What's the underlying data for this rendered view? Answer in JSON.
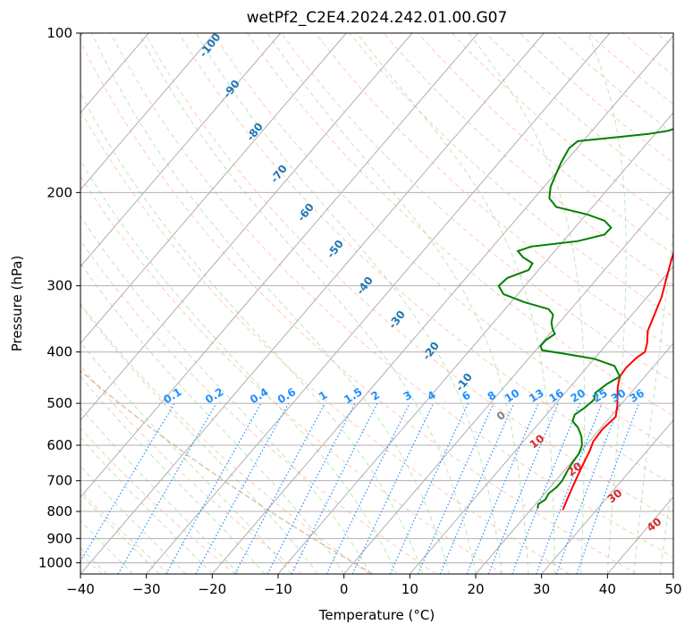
{
  "chart_data": {
    "type": "line",
    "title": "wetPf2_C2E4.2024.242.01.00.G07",
    "xlabel": "Temperature (°C)",
    "ylabel": "Pressure (hPa)",
    "xlim": [
      -40,
      50
    ],
    "ylim": [
      1050,
      100
    ],
    "y_scale": "log",
    "grid": true,
    "x_ticks": [
      "−40",
      "−30",
      "−20",
      "−10",
      "0",
      "10",
      "20",
      "30",
      "40",
      "50"
    ],
    "y_ticks": [
      "100",
      "200",
      "300",
      "400",
      "500",
      "600",
      "700",
      "800",
      "900",
      "1000"
    ],
    "colors": {
      "temperature": "#ff0000",
      "dewpoint": "#008000",
      "isotherm": "#b0b0b0",
      "dry_adiabat": "#ff7f50",
      "moist_adiabat": "#3cb371",
      "mixing_ratio": "#1e90ff",
      "lcl_curve": "#c8a080"
    },
    "series": [
      {
        "key": "temperature",
        "points": [
          [
            24.9,
            795
          ],
          [
            24.2,
            760
          ],
          [
            23.6,
            730
          ],
          [
            23.0,
            700
          ],
          [
            22.4,
            670
          ],
          [
            21.8,
            640
          ],
          [
            21.3,
            615
          ],
          [
            20.6,
            590
          ],
          [
            20.4,
            560
          ],
          [
            20.8,
            530
          ],
          [
            19.6,
            505
          ],
          [
            18.4,
            485
          ],
          [
            17.2,
            465
          ],
          [
            16.2,
            445
          ],
          [
            16.0,
            428
          ],
          [
            16.3,
            410
          ],
          [
            16.8,
            400
          ],
          [
            16.0,
            385
          ],
          [
            14.5,
            365
          ],
          [
            13.4,
            340
          ],
          [
            12.2,
            315
          ],
          [
            10.6,
            292
          ],
          [
            9.0,
            270
          ],
          [
            7.5,
            250
          ],
          [
            5.9,
            232
          ],
          [
            4.5,
            216
          ],
          [
            3.1,
            202
          ],
          [
            1.8,
            188
          ],
          [
            0.9,
            178
          ],
          [
            -0.8,
            166
          ],
          [
            -2.8,
            154
          ],
          [
            -4.8,
            143
          ],
          [
            -6.6,
            133
          ],
          [
            -8.4,
            124
          ],
          [
            -9.6,
            117
          ],
          [
            -10.6,
            112
          ],
          [
            -11.3,
            108
          ],
          [
            -11.4,
            105
          ],
          [
            -11.4,
            100
          ]
        ]
      },
      {
        "key": "dewpoint",
        "points": [
          [
            20.9,
            790
          ],
          [
            20.4,
            775
          ],
          [
            20.9,
            760
          ],
          [
            20.6,
            740
          ],
          [
            21.0,
            720
          ],
          [
            21.0,
            700
          ],
          [
            20.5,
            670
          ],
          [
            20.2,
            645
          ],
          [
            20.0,
            622
          ],
          [
            19.4,
            600
          ],
          [
            18.2,
            578
          ],
          [
            16.6,
            557
          ],
          [
            14.8,
            540
          ],
          [
            14.3,
            525
          ],
          [
            14.9,
            510
          ],
          [
            15.3,
            492
          ],
          [
            14.6,
            478
          ],
          [
            15.2,
            460
          ],
          [
            16.2,
            445
          ],
          [
            14.0,
            425
          ],
          [
            10.0,
            412
          ],
          [
            4.2,
            402
          ],
          [
            1.0,
            397
          ],
          [
            0.2,
            390
          ],
          [
            0.2,
            380
          ],
          [
            0.8,
            370
          ],
          [
            -0.2,
            362
          ],
          [
            -1.2,
            352
          ],
          [
            -2.0,
            340
          ],
          [
            -3.4,
            332
          ],
          [
            -8.0,
            322
          ],
          [
            -12.2,
            311
          ],
          [
            -14.0,
            300
          ],
          [
            -13.7,
            290
          ],
          [
            -11.5,
            280
          ],
          [
            -11.8,
            272
          ],
          [
            -14.0,
            265
          ],
          [
            -15.6,
            258
          ],
          [
            -14.2,
            253
          ],
          [
            -7.8,
            247
          ],
          [
            -4.6,
            240
          ],
          [
            -4.5,
            233
          ],
          [
            -6.4,
            226
          ],
          [
            -9.8,
            220
          ],
          [
            -15.5,
            213
          ],
          [
            -17.7,
            205
          ],
          [
            -19.0,
            195
          ],
          [
            -19.8,
            185
          ],
          [
            -20.6,
            175
          ],
          [
            -21.2,
            165
          ],
          [
            -20.8,
            160
          ],
          [
            -15.0,
            157
          ],
          [
            -11.0,
            155
          ],
          [
            -8.5,
            153
          ],
          [
            -7.0,
            150
          ],
          [
            -5.7,
            145
          ],
          [
            -4.3,
            138
          ],
          [
            -2.7,
            131
          ],
          [
            -2.0,
            125
          ],
          [
            -1.9,
            120
          ],
          [
            -1.6,
            115
          ],
          [
            -1.4,
            110
          ],
          [
            -1.0,
            106
          ],
          [
            0.0,
            103
          ],
          [
            0.6,
            100
          ]
        ]
      }
    ],
    "mixing_ratio_labels": [
      "0.1",
      "0.2",
      "0.4",
      "0.6",
      "1",
      "1.5",
      "2",
      "3",
      "4",
      "6",
      "8",
      "10",
      "13",
      "16",
      "20",
      "25",
      "30",
      "36"
    ],
    "dry_adiabat_labels": [
      "10",
      "20",
      "30",
      "40"
    ],
    "moist_adiabat_labels": [
      "-100",
      "-90",
      "-80",
      "-70",
      "-60",
      "-50",
      "-40",
      "-30",
      "-20",
      "-10"
    ],
    "zero_label": "0"
  }
}
